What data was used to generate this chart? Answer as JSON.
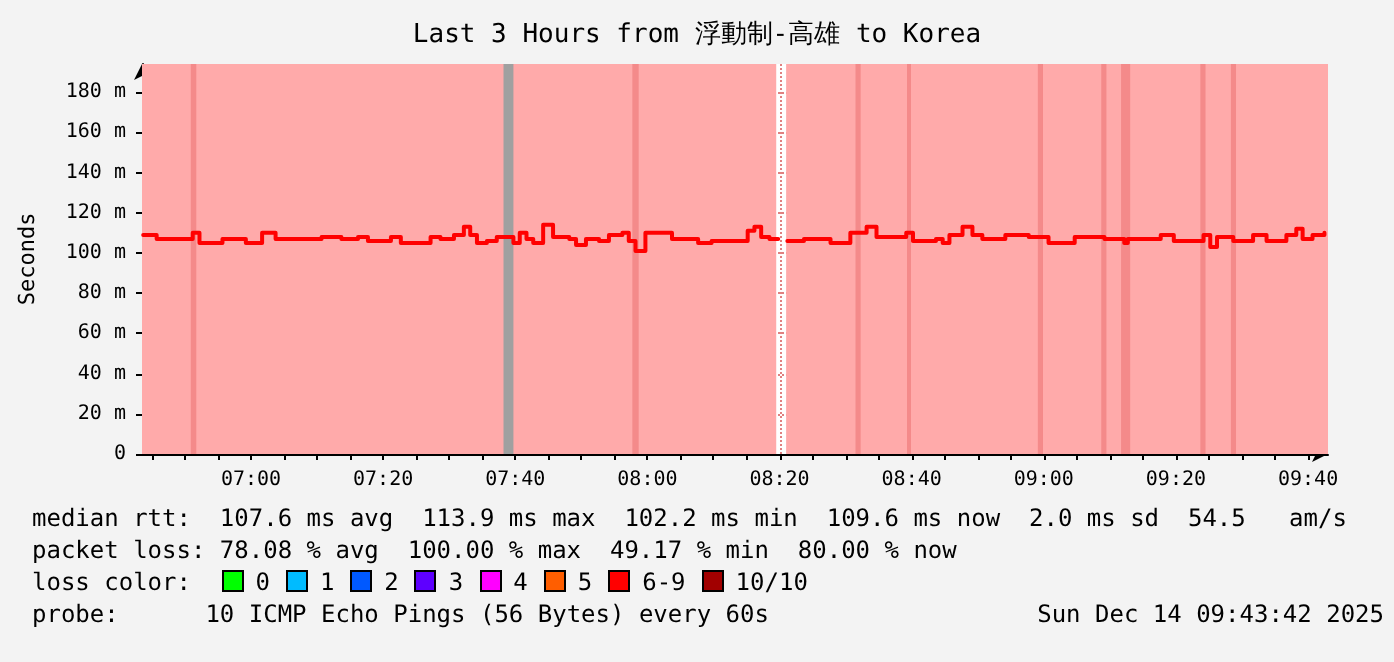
{
  "chart_data": {
    "type": "step",
    "title": "Last 3 Hours from 浮動制-高雄 to Korea",
    "ylabel": "Seconds",
    "x": [
      6.728,
      6.762,
      6.828,
      6.853,
      6.87,
      6.928,
      6.987,
      7.028,
      7.062,
      7.128,
      7.178,
      7.228,
      7.27,
      7.295,
      7.353,
      7.378,
      7.453,
      7.478,
      7.512,
      7.537,
      7.553,
      7.57,
      7.595,
      7.62,
      7.645,
      7.662,
      7.678,
      7.695,
      7.712,
      7.737,
      7.762,
      7.803,
      7.82,
      7.845,
      7.878,
      7.903,
      7.937,
      7.953,
      7.97,
      7.995,
      8.028,
      8.062,
      8.112,
      8.128,
      8.162,
      8.228,
      8.253,
      8.27,
      8.287,
      8.308,
      8.33,
      8.353,
      8.395,
      8.462,
      8.512,
      8.553,
      8.578,
      8.653,
      8.67,
      8.728,
      8.745,
      8.762,
      8.795,
      8.82,
      8.845,
      8.903,
      8.962,
      9.012,
      9.078,
      9.153,
      9.203,
      9.212,
      9.295,
      9.328,
      9.403,
      9.42,
      9.437,
      9.478,
      9.528,
      9.562,
      9.612,
      9.637,
      9.653,
      9.678,
      9.708
    ],
    "series": [
      {
        "color": "#ff0000",
        "values": [
          109,
          107,
          107,
          110,
          105,
          107,
          105,
          110,
          107,
          107,
          108,
          107,
          108,
          106,
          108,
          105,
          108,
          107,
          109,
          113,
          109,
          105,
          106,
          108,
          108,
          105,
          110,
          107,
          105,
          114,
          108,
          107,
          104,
          107,
          106,
          109,
          110,
          106,
          101,
          110,
          110,
          107,
          107,
          105,
          106,
          106,
          111,
          113,
          108,
          107,
          null,
          106,
          107,
          105,
          110,
          113,
          108,
          110,
          106,
          107,
          105,
          109,
          113,
          109,
          107,
          109,
          108,
          105,
          108,
          107,
          105,
          107,
          109,
          106,
          109,
          103,
          108,
          106,
          109,
          106,
          109,
          112,
          107,
          109,
          110
        ]
      }
    ],
    "xlim": [
      6.725,
      9.717
    ],
    "xticks": [
      {
        "value": 6.75,
        "label": null
      },
      {
        "value": 6.8333,
        "label": null
      },
      {
        "value": 6.9167,
        "label": null
      },
      {
        "value": 7,
        "label": "07:00"
      },
      {
        "value": 7.0833,
        "label": null
      },
      {
        "value": 7.1667,
        "label": null
      },
      {
        "value": 7.25,
        "label": null
      },
      {
        "value": 7.3333,
        "label": "07:20"
      },
      {
        "value": 7.4167,
        "label": null
      },
      {
        "value": 7.5,
        "label": null
      },
      {
        "value": 7.5833,
        "label": null
      },
      {
        "value": 7.6667,
        "label": "07:40"
      },
      {
        "value": 7.75,
        "label": null
      },
      {
        "value": 7.8333,
        "label": null
      },
      {
        "value": 7.9167,
        "label": null
      },
      {
        "value": 8,
        "label": "08:00"
      },
      {
        "value": 8.0833,
        "label": null
      },
      {
        "value": 8.1667,
        "label": null
      },
      {
        "value": 8.25,
        "label": null
      },
      {
        "value": 8.3333,
        "label": "08:20"
      },
      {
        "value": 8.4167,
        "label": null
      },
      {
        "value": 8.5,
        "label": null
      },
      {
        "value": 8.5833,
        "label": null
      },
      {
        "value": 8.6667,
        "label": "08:40"
      },
      {
        "value": 8.75,
        "label": null
      },
      {
        "value": 8.8333,
        "label": null
      },
      {
        "value": 8.9167,
        "label": null
      },
      {
        "value": 9,
        "label": "09:00"
      },
      {
        "value": 9.0833,
        "label": null
      },
      {
        "value": 9.1667,
        "label": null
      },
      {
        "value": 9.25,
        "label": null
      },
      {
        "value": 9.3333,
        "label": "09:20"
      },
      {
        "value": 9.4167,
        "label": null
      },
      {
        "value": 9.5,
        "label": null
      },
      {
        "value": 9.5833,
        "label": null
      },
      {
        "value": 9.6667,
        "label": "09:40"
      }
    ],
    "ylim": [
      0,
      194
    ],
    "yticks": [
      0,
      {
        "value": 20,
        "label": "20 m"
      },
      {
        "value": 40,
        "label": "40 m"
      },
      {
        "value": 60,
        "label": "60 m"
      },
      {
        "value": 80,
        "label": "80 m"
      },
      {
        "value": 100,
        "label": "100 m"
      },
      {
        "value": 120,
        "label": "120 m"
      },
      {
        "value": 140,
        "label": "140 m"
      },
      {
        "value": 160,
        "label": "160 m"
      },
      {
        "value": 180,
        "label": "180 m"
      }
    ],
    "bands": [
      {
        "axis": "x",
        "from": 6.725,
        "to": 8.325,
        "color": "#ffaaaa"
      },
      {
        "axis": "x",
        "from": 8.35,
        "to": 9.717,
        "color": "#ffaaaa"
      },
      {
        "axis": "x",
        "from": 6.848,
        "to": 6.862,
        "color": "#f48a8a"
      },
      {
        "axis": "x",
        "from": 7.962,
        "to": 7.978,
        "color": "#f48a8a"
      },
      {
        "axis": "x",
        "from": 8.525,
        "to": 8.538,
        "color": "#f48a8a"
      },
      {
        "axis": "x",
        "from": 8.655,
        "to": 8.665,
        "color": "#f48a8a"
      },
      {
        "axis": "x",
        "from": 8.985,
        "to": 8.998,
        "color": "#f48a8a"
      },
      {
        "axis": "x",
        "from": 9.145,
        "to": 9.158,
        "color": "#f48a8a"
      },
      {
        "axis": "x",
        "from": 9.195,
        "to": 9.218,
        "color": "#f48a8a"
      },
      {
        "axis": "x",
        "from": 9.395,
        "to": 9.408,
        "color": "#f48a8a"
      },
      {
        "axis": "x",
        "from": 9.472,
        "to": 9.485,
        "color": "#f48a8a"
      },
      {
        "axis": "x",
        "from": 7.637,
        "to": 7.662,
        "color": "#a0a0a0"
      }
    ],
    "annotations": [
      "median rtt:  107.6 ms avg  113.9 ms max  102.2 ms min  109.6 ms now  2.0 ms sd  54.5   am/s",
      "packet loss: 78.08 % avg  100.00 % max  49.17 % min  80.00 % now",
      "loss color:",
      "0",
      "1",
      "2",
      "3",
      "4",
      "5",
      "6-9",
      "10/10",
      "probe:",
      "10 ICMP Echo Pings (56 Bytes) every 60s",
      "Sun Dec 14 09:43:42 2025"
    ],
    "grid": true,
    "legend": false,
    "marker": "none",
    "line_style": "solid"
  }
}
